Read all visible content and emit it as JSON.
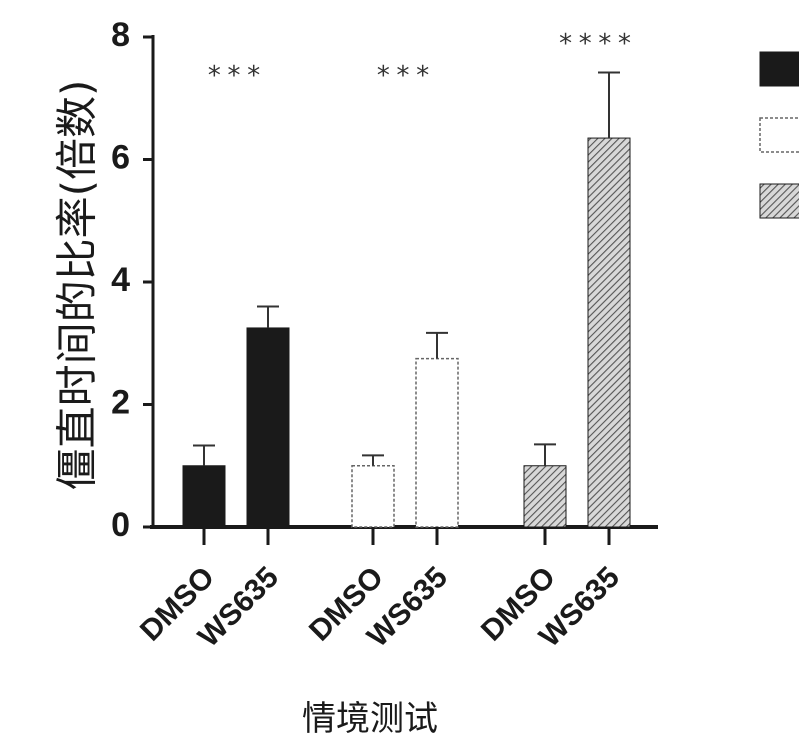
{
  "chart_data": {
    "type": "bar",
    "ylabel": "僵直时间的比率(倍数)",
    "xlabel": "情境测试",
    "ylim": [
      0,
      8
    ],
    "yticks": [
      "0",
      "2",
      "4",
      "6",
      "8"
    ],
    "grid": false,
    "legend_entries": 3,
    "legend_placement": "top-right",
    "groups": [
      {
        "style": "solid-black",
        "color": "#1a1a1a",
        "categories": [
          "DMSO",
          "WS635"
        ],
        "values": [
          1.0,
          3.25
        ],
        "errors": [
          0.33,
          0.35
        ],
        "significance": "***"
      },
      {
        "style": "open-white",
        "color": "#ffffff",
        "categories": [
          "DMSO",
          "WS635"
        ],
        "values": [
          1.0,
          2.75
        ],
        "errors": [
          0.17,
          0.42
        ],
        "significance": "***"
      },
      {
        "style": "hatched-gray",
        "color": "#9a9a9a",
        "categories": [
          "DMSO",
          "WS635"
        ],
        "values": [
          1.0,
          6.35
        ],
        "errors": [
          0.35,
          1.07
        ],
        "significance": "****"
      }
    ]
  }
}
